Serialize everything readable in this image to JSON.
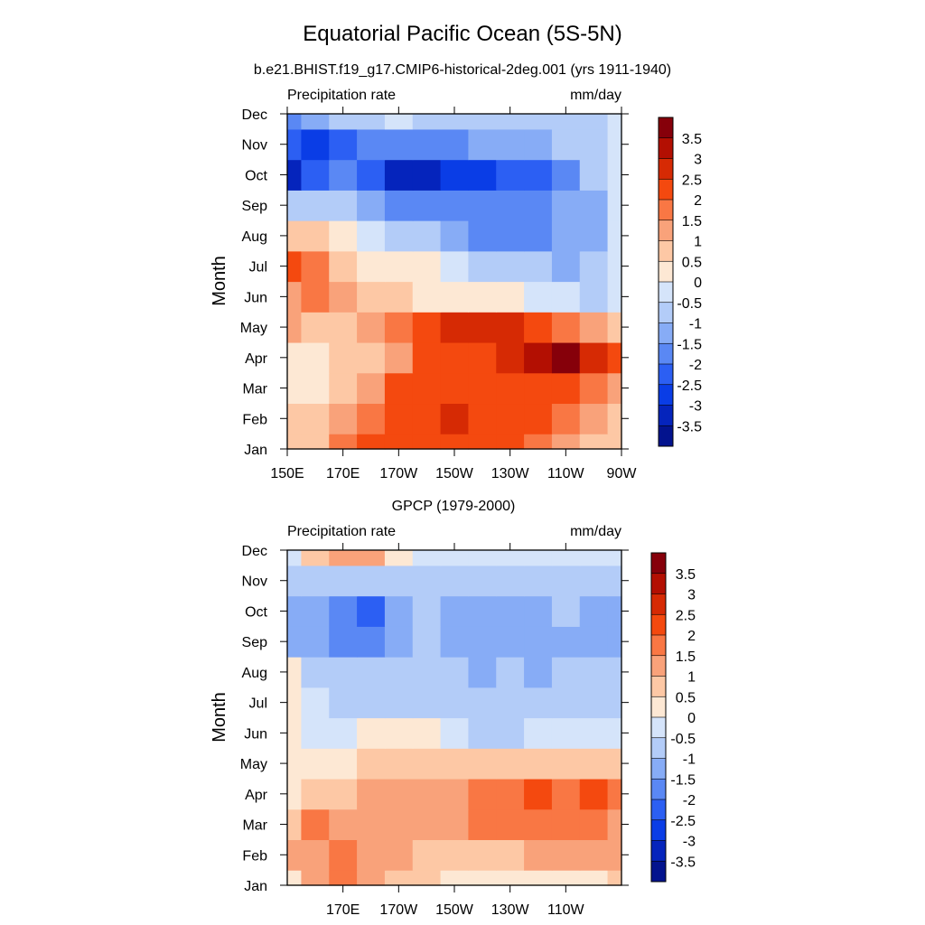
{
  "title": "Equatorial Pacific Ocean (5S-5N)",
  "chart_data": [
    {
      "type": "heatmap",
      "subtitle": "b.e21.BHIST.f19_g17.CMIP6-historical-2deg.001 (yrs 1911-1940)",
      "left_label": "Precipitation rate",
      "right_label": "mm/day",
      "ylabel": "Month",
      "xlabel": "",
      "x_ticks": [
        "150E",
        "170E",
        "170W",
        "150W",
        "130W",
        "110W",
        "90W"
      ],
      "x_tick_lons": [
        150,
        170,
        190,
        210,
        230,
        250,
        270
      ],
      "xlim": [
        150,
        270
      ],
      "y_ticks": [
        "Jan",
        "Feb",
        "Mar",
        "Apr",
        "May",
        "Jun",
        "Jul",
        "Aug",
        "Sep",
        "Oct",
        "Nov",
        "Dec"
      ],
      "x": [
        150,
        160,
        170,
        180,
        190,
        200,
        210,
        220,
        230,
        240,
        250,
        260,
        270
      ],
      "values": [
        [
          0.5,
          0.7,
          1.6,
          2.0,
          2.0,
          2.0,
          2.0,
          2.0,
          2.0,
          1.8,
          1.4,
          0.8,
          0.6
        ],
        [
          0.6,
          0.9,
          1.0,
          1.6,
          2.0,
          2.4,
          2.6,
          2.4,
          2.2,
          2.0,
          1.6,
          1.0,
          0.8
        ],
        [
          0.3,
          0.4,
          0.8,
          1.4,
          2.0,
          2.1,
          2.2,
          2.2,
          2.4,
          2.4,
          2.2,
          1.8,
          1.3
        ],
        [
          0.2,
          0.4,
          0.5,
          0.9,
          1.3,
          2.0,
          2.2,
          2.3,
          2.8,
          3.4,
          3.8,
          2.6,
          2.0
        ],
        [
          1.0,
          0.8,
          0.6,
          1.0,
          1.6,
          2.0,
          2.5,
          2.6,
          2.5,
          2.2,
          1.6,
          1.2,
          0.7
        ],
        [
          1.4,
          1.6,
          1.2,
          0.8,
          0.5,
          0.4,
          0.3,
          0.2,
          0.0,
          -0.2,
          -0.4,
          -0.6,
          -0.4
        ],
        [
          2.2,
          1.5,
          0.7,
          0.4,
          0.2,
          0.0,
          -0.3,
          -0.6,
          -0.8,
          -1.0,
          -1.2,
          -1.0,
          -0.4
        ],
        [
          0.6,
          0.8,
          0.2,
          -0.3,
          -0.6,
          -1.0,
          -1.3,
          -1.6,
          -1.7,
          -1.7,
          -1.4,
          -1.1,
          -0.4
        ],
        [
          -0.6,
          -0.8,
          -1.0,
          -1.4,
          -1.7,
          -1.9,
          -2.0,
          -2.0,
          -1.9,
          -1.6,
          -1.4,
          -1.1,
          -0.3
        ],
        [
          -3.2,
          -2.4,
          -2.0,
          -2.3,
          -3.1,
          -3.1,
          -3.0,
          -2.6,
          -2.3,
          -2.1,
          -1.6,
          -1.0,
          -0.3
        ],
        [
          -2.4,
          -2.6,
          -2.2,
          -1.8,
          -1.7,
          -1.7,
          -1.6,
          -1.5,
          -1.3,
          -1.1,
          -1.0,
          -0.6,
          -0.2
        ],
        [
          -1.6,
          -1.3,
          -1.0,
          -0.6,
          -0.5,
          -0.6,
          -0.8,
          -1.0,
          -1.0,
          -1.0,
          -0.8,
          -0.6,
          -0.2
        ]
      ]
    },
    {
      "type": "heatmap",
      "subtitle": "GPCP (1979-2000)",
      "left_label": "Precipitation rate",
      "right_label": "mm/day",
      "ylabel": "Month",
      "xlabel": "",
      "x_ticks": [
        "170E",
        "170W",
        "150W",
        "130W",
        "110W"
      ],
      "x_tick_lons": [
        170,
        190,
        210,
        230,
        250
      ],
      "xlim": [
        150,
        270
      ],
      "y_ticks": [
        "Jan",
        "Feb",
        "Mar",
        "Apr",
        "May",
        "Jun",
        "Jul",
        "Aug",
        "Sep",
        "Oct",
        "Nov",
        "Dec"
      ],
      "x": [
        150,
        160,
        170,
        180,
        190,
        200,
        210,
        220,
        230,
        240,
        250,
        260,
        270
      ],
      "values": [
        [
          0.4,
          1.2,
          1.6,
          1.2,
          0.8,
          0.5,
          0.2,
          0.2,
          0.1,
          0.1,
          0.4,
          0.4,
          0.7
        ],
        [
          1.2,
          1.4,
          1.7,
          1.4,
          1.0,
          0.8,
          0.6,
          0.6,
          0.9,
          1.0,
          1.2,
          1.4,
          1.4
        ],
        [
          0.8,
          1.6,
          1.4,
          1.2,
          1.2,
          1.1,
          1.0,
          1.5,
          1.7,
          1.8,
          1.9,
          1.8,
          1.4
        ],
        [
          0.4,
          0.8,
          0.8,
          1.0,
          1.2,
          1.0,
          1.1,
          1.6,
          1.9,
          2.1,
          1.6,
          2.1,
          1.6
        ],
        [
          0.3,
          0.2,
          0.4,
          0.6,
          0.8,
          0.6,
          0.6,
          0.8,
          0.8,
          0.9,
          0.8,
          0.6,
          0.5
        ],
        [
          0.2,
          -0.3,
          -0.4,
          0.0,
          0.2,
          0.0,
          -0.4,
          -0.6,
          -0.6,
          -0.5,
          -0.5,
          -0.4,
          -0.3
        ],
        [
          0.2,
          -0.5,
          -0.7,
          -0.6,
          -0.6,
          -0.7,
          -0.9,
          -0.9,
          -0.9,
          -0.8,
          -0.7,
          -0.6,
          -0.6
        ],
        [
          0.3,
          -0.7,
          -0.9,
          -0.9,
          -0.9,
          -0.9,
          -1.0,
          -1.1,
          -1.0,
          -1.1,
          -1.0,
          -1.0,
          -0.9
        ],
        [
          -1.4,
          -1.2,
          -1.6,
          -1.8,
          -1.4,
          -1.0,
          -1.2,
          -1.4,
          -1.3,
          -1.4,
          -1.2,
          -1.4,
          -1.3
        ],
        [
          -1.2,
          -1.3,
          -1.6,
          -2.1,
          -1.4,
          -1.0,
          -1.1,
          -1.3,
          -1.2,
          -1.2,
          -1.0,
          -1.3,
          -1.2
        ],
        [
          -0.8,
          -1.0,
          -0.9,
          -0.9,
          -0.8,
          -0.6,
          -0.6,
          -0.7,
          -0.6,
          -0.6,
          -0.6,
          -0.8,
          -0.7
        ],
        [
          -0.2,
          0.6,
          1.3,
          1.0,
          0.4,
          -0.2,
          -0.4,
          -0.5,
          -0.4,
          -0.4,
          -0.3,
          -0.2,
          -0.2
        ]
      ]
    }
  ],
  "colorbar": {
    "labels": [
      "3.5",
      "3",
      "2.5",
      "2",
      "1.5",
      "1",
      "0.5",
      "0",
      "-0.5",
      "-1",
      "-1.5",
      "-2",
      "-2.5",
      "-3",
      "-3.5"
    ],
    "levels": [
      3.5,
      3,
      2.5,
      2,
      1.5,
      1,
      0.5,
      0,
      -0.5,
      -1,
      -1.5,
      -2,
      -2.5,
      -3,
      -3.5
    ],
    "colors": [
      "#86000a",
      "#b30f02",
      "#d62a04",
      "#f4490f",
      "#f97744",
      "#f9a27a",
      "#fdc8a5",
      "#fde8d4",
      "#d5e4fa",
      "#b3ccf8",
      "#87acf6",
      "#5a88f4",
      "#2c5ff3",
      "#0a3de6",
      "#0524bc",
      "#03138e"
    ]
  }
}
